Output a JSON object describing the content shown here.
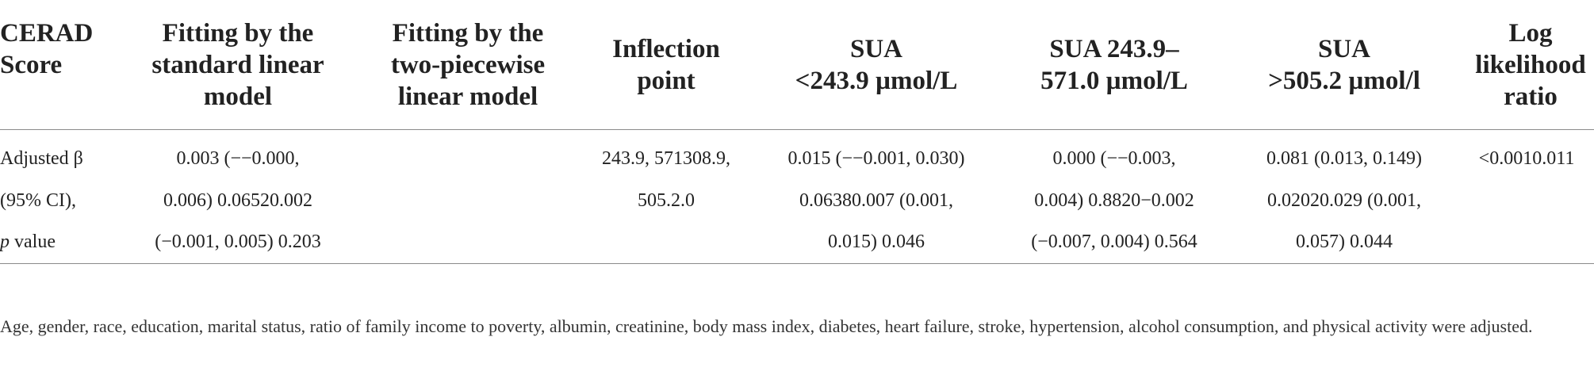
{
  "table": {
    "headers": [
      "CERAD\nScore",
      "Fitting by the\nstandard linear\nmodel",
      "Fitting by the\ntwo-piecewise\nlinear model",
      "Inflection\npoint",
      "SUA\n<243.9 µmol/L",
      "SUA 243.9–\n571.0 µmol/L",
      "SUA\n>505.2 µmol/l",
      "Log\nlikelihood\nratio"
    ],
    "row": {
      "label_line1": "Adjusted β",
      "label_line2": "(95% CI),",
      "label_line3_italic": "p",
      "label_line3_rest": " value",
      "standard_linear": [
        "0.003 (−−0.000,",
        "0.006) 0.06520.002",
        "(−0.001, 0.005) 0.203"
      ],
      "two_piecewise": [],
      "inflection_point": [
        "243.9, 571308.9,",
        "505.2.0"
      ],
      "sua_low": [
        "0.015 (−−0.001, 0.030)",
        "0.06380.007 (0.001,",
        "0.015) 0.046"
      ],
      "sua_mid": [
        "0.000 (−−0.003,",
        "0.004) 0.8820−0.002",
        "(−0.007, 0.004) 0.564"
      ],
      "sua_high": [
        "0.081 (0.013, 0.149)",
        "0.02020.029 (0.001,",
        "0.057) 0.044"
      ],
      "log_likelihood": [
        "<0.0010.011"
      ]
    }
  },
  "footnote": {
    "text": "Age, gender, race, education, marital status, ratio of family income to poverty, albumin, creatinine, body mass index, diabetes, heart failure, stroke, hypertension, alcohol consumption, and physical activity were adjusted."
  }
}
